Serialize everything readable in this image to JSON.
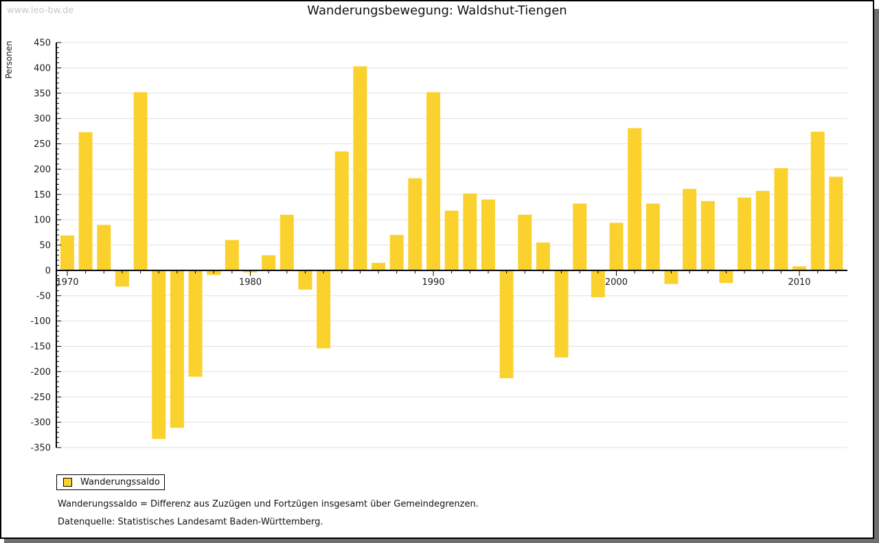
{
  "watermark": "www.leo-bw.de",
  "chart_data": {
    "type": "bar",
    "title": "Wanderungsbewegung: Waldshut-Tiengen",
    "xlabel": "",
    "ylabel": "Personen",
    "ylim": [
      -350,
      450
    ],
    "ytick_step": 50,
    "ytick_minor_step": 10,
    "grid": true,
    "legend_position": "bottom-left",
    "bar_color": "#fbd22d",
    "gridline_color": "#e0e0e0",
    "axis_color": "#000000",
    "x_major_ticks": [
      1970,
      1980,
      1990,
      2000,
      2010
    ],
    "x": [
      1970,
      1971,
      1972,
      1973,
      1974,
      1975,
      1976,
      1977,
      1978,
      1979,
      1980,
      1981,
      1982,
      1983,
      1984,
      1985,
      1986,
      1987,
      1988,
      1989,
      1990,
      1991,
      1992,
      1993,
      1994,
      1995,
      1996,
      1997,
      1998,
      1999,
      2000,
      2001,
      2002,
      2003,
      2004,
      2005,
      2006,
      2007,
      2008,
      2009,
      2010,
      2011,
      2012
    ],
    "series": [
      {
        "name": "Wanderungssaldo",
        "values": [
          69,
          273,
          90,
          -32,
          352,
          -333,
          -311,
          -210,
          -9,
          60,
          -4,
          30,
          110,
          -38,
          -154,
          235,
          403,
          15,
          70,
          182,
          352,
          118,
          152,
          140,
          -213,
          110,
          55,
          -172,
          132,
          -53,
          94,
          281,
          132,
          -27,
          161,
          137,
          -25,
          144,
          157,
          202,
          8,
          274,
          185
        ]
      }
    ]
  },
  "legend": {
    "label": "Wanderungssaldo"
  },
  "notes": {
    "definition": "Wanderungssaldo = Differenz aus Zuzügen und Fortzügen insgesamt über Gemeindegrenzen.",
    "source": "Datenquelle: Statistisches Landesamt Baden-Württemberg."
  }
}
